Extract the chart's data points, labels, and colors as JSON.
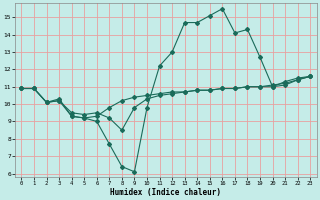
{
  "xlabel": "Humidex (Indice chaleur)",
  "bg_color": "#c5ece8",
  "line_color": "#1a6b5a",
  "grid_color": "#e8a0a0",
  "xlim": [
    -0.5,
    23.5
  ],
  "ylim": [
    5.8,
    15.8
  ],
  "xticks": [
    0,
    1,
    2,
    3,
    4,
    5,
    6,
    7,
    8,
    9,
    10,
    11,
    12,
    13,
    14,
    15,
    16,
    17,
    18,
    19,
    20,
    21,
    22,
    23
  ],
  "yticks": [
    6,
    7,
    8,
    9,
    10,
    11,
    12,
    13,
    14,
    15
  ],
  "line1_x": [
    0,
    1,
    2,
    3,
    4,
    5,
    6,
    7,
    8,
    9,
    10,
    11,
    12,
    13,
    14,
    15,
    16,
    17,
    18,
    19,
    20,
    21,
    22,
    23
  ],
  "line1_y": [
    10.9,
    10.9,
    10.1,
    10.2,
    9.3,
    9.2,
    9.0,
    7.7,
    6.4,
    6.1,
    9.8,
    12.2,
    13.0,
    14.7,
    14.7,
    15.1,
    15.5,
    14.1,
    14.3,
    12.7,
    11.0,
    11.3,
    11.5,
    11.6
  ],
  "line2_x": [
    0,
    1,
    2,
    3,
    4,
    5,
    6,
    7,
    8,
    9,
    10,
    11,
    12,
    13,
    14,
    15,
    16,
    17,
    18,
    19,
    20,
    21,
    22,
    23
  ],
  "line2_y": [
    10.9,
    10.9,
    10.1,
    10.2,
    9.5,
    9.4,
    9.5,
    9.2,
    8.5,
    9.8,
    10.3,
    10.5,
    10.6,
    10.7,
    10.8,
    10.8,
    10.9,
    10.9,
    11.0,
    11.0,
    11.1,
    11.2,
    11.4,
    11.6
  ],
  "line3_x": [
    0,
    1,
    2,
    3,
    4,
    5,
    6,
    7,
    8,
    9,
    10,
    11,
    12,
    13,
    14,
    15,
    16,
    17,
    18,
    19,
    20,
    21,
    22,
    23
  ],
  "line3_y": [
    10.9,
    10.9,
    10.1,
    10.3,
    9.3,
    9.2,
    9.3,
    9.8,
    10.2,
    10.4,
    10.5,
    10.6,
    10.7,
    10.7,
    10.8,
    10.8,
    10.9,
    10.9,
    11.0,
    11.0,
    11.0,
    11.1,
    11.4,
    11.6
  ]
}
